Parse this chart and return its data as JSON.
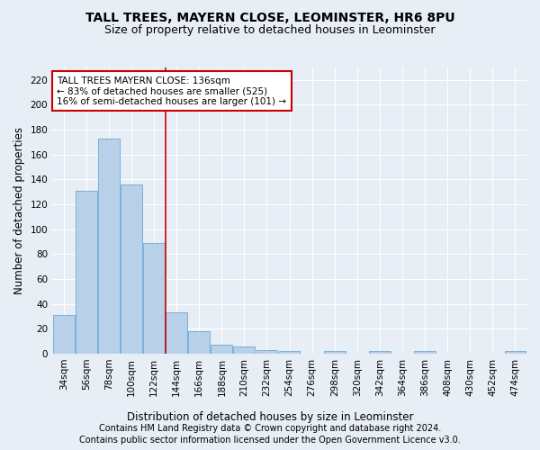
{
  "title": "TALL TREES, MAYERN CLOSE, LEOMINSTER, HR6 8PU",
  "subtitle": "Size of property relative to detached houses in Leominster",
  "xlabel": "Distribution of detached houses by size in Leominster",
  "ylabel": "Number of detached properties",
  "categories": [
    "34sqm",
    "56sqm",
    "78sqm",
    "100sqm",
    "122sqm",
    "144sqm",
    "166sqm",
    "188sqm",
    "210sqm",
    "232sqm",
    "254sqm",
    "276sqm",
    "298sqm",
    "320sqm",
    "342sqm",
    "364sqm",
    "386sqm",
    "408sqm",
    "430sqm",
    "452sqm",
    "474sqm"
  ],
  "values": [
    31,
    131,
    173,
    136,
    89,
    33,
    18,
    7,
    6,
    3,
    2,
    0,
    2,
    0,
    2,
    0,
    2,
    0,
    0,
    0,
    2
  ],
  "bar_color": "#b8d0e8",
  "bar_edge_color": "#6aaad4",
  "vline_x_index": 4.5,
  "vline_color": "#cc0000",
  "annotation_text": "TALL TREES MAYERN CLOSE: 136sqm\n← 83% of detached houses are smaller (525)\n16% of semi-detached houses are larger (101) →",
  "annotation_box_color": "#ffffff",
  "annotation_box_edge": "#cc0000",
  "ylim": [
    0,
    230
  ],
  "yticks": [
    0,
    20,
    40,
    60,
    80,
    100,
    120,
    140,
    160,
    180,
    200,
    220
  ],
  "footer1": "Contains HM Land Registry data © Crown copyright and database right 2024.",
  "footer2": "Contains public sector information licensed under the Open Government Licence v3.0.",
  "background_color": "#e8eef6",
  "grid_color": "#ffffff",
  "title_fontsize": 10,
  "subtitle_fontsize": 9,
  "axis_label_fontsize": 8.5,
  "tick_fontsize": 7.5,
  "annotation_fontsize": 7.5,
  "footer_fontsize": 7
}
